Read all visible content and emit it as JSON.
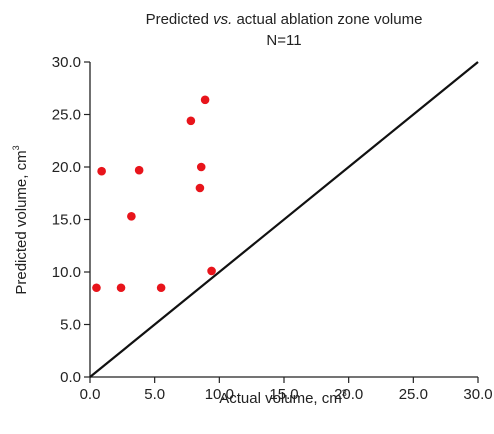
{
  "chart_data": {
    "type": "scatter",
    "title": {
      "prefix": "Predicted ",
      "italic": "vs.",
      "suffix": " actual ablation zone volume"
    },
    "subtitle": "N=11",
    "xlabel": {
      "text": "Actual volume, cm",
      "sup": "3"
    },
    "ylabel": {
      "text": "Predicted volume, cm",
      "sup": "3"
    },
    "xlim": [
      0,
      30
    ],
    "ylim": [
      0,
      30
    ],
    "x_ticks": [
      0,
      5,
      10,
      15,
      20,
      25,
      30
    ],
    "y_ticks": [
      0,
      5,
      10,
      15,
      20,
      25,
      30
    ],
    "x_tick_labels": [
      "0.0",
      "5.0",
      "10.0",
      "15.0",
      "20.0",
      "25.0",
      "30.0"
    ],
    "y_tick_labels": [
      "0.0",
      "5.0",
      "10.0",
      "15.0",
      "20.0",
      "25.0",
      "30.0"
    ],
    "grid": false,
    "reference_line": {
      "from": [
        0,
        0
      ],
      "to": [
        30,
        30
      ],
      "color": "#111111"
    },
    "series": [
      {
        "color": "#e8141b",
        "points": [
          {
            "x": 0.5,
            "y": 8.5
          },
          {
            "x": 0.9,
            "y": 19.6
          },
          {
            "x": 2.4,
            "y": 8.5
          },
          {
            "x": 3.2,
            "y": 15.3
          },
          {
            "x": 3.8,
            "y": 19.7
          },
          {
            "x": 5.5,
            "y": 8.5
          },
          {
            "x": 7.8,
            "y": 24.4
          },
          {
            "x": 8.5,
            "y": 18.0
          },
          {
            "x": 8.6,
            "y": 20.0
          },
          {
            "x": 8.9,
            "y": 26.4
          },
          {
            "x": 9.4,
            "y": 10.1
          }
        ]
      }
    ]
  }
}
